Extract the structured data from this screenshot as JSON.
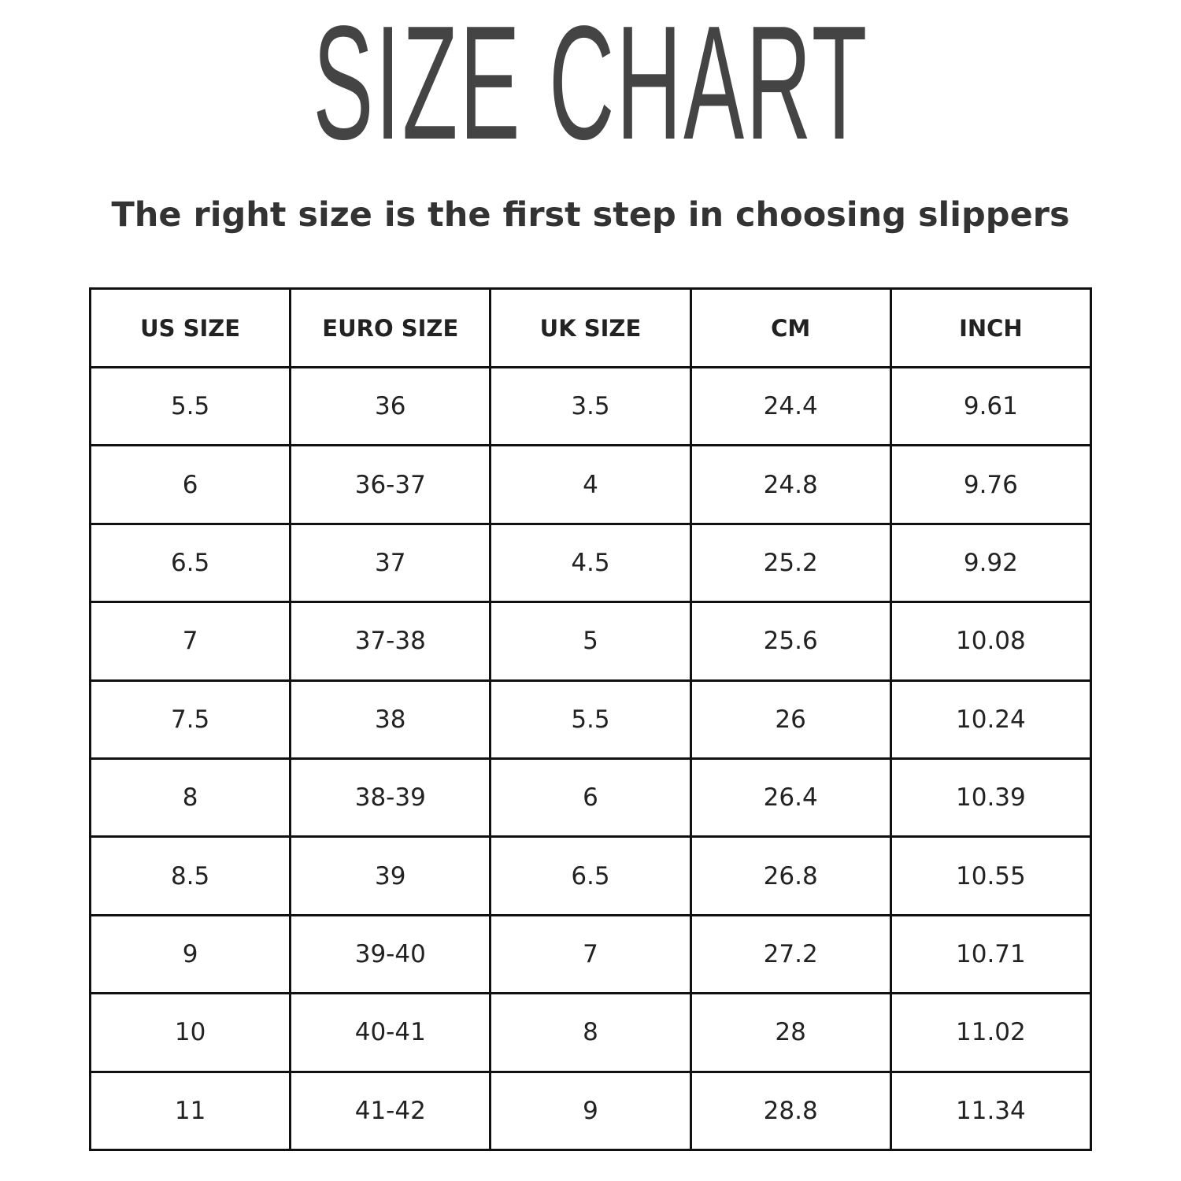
{
  "title": "SIZE CHART",
  "subtitle": "The right size is the first step in choosing slippers",
  "table": {
    "headers": [
      "US SIZE",
      "EURO SIZE",
      "UK SIZE",
      "CM",
      "INCH"
    ],
    "rows": [
      [
        "5.5",
        "36",
        "3.5",
        "24.4",
        "9.61"
      ],
      [
        "6",
        "36-37",
        "4",
        "24.8",
        "9.76"
      ],
      [
        "6.5",
        "37",
        "4.5",
        "25.2",
        "9.92"
      ],
      [
        "7",
        "37-38",
        "5",
        "25.6",
        "10.08"
      ],
      [
        "7.5",
        "38",
        "5.5",
        "26",
        "10.24"
      ],
      [
        "8",
        "38-39",
        "6",
        "26.4",
        "10.39"
      ],
      [
        "8.5",
        "39",
        "6.5",
        "26.8",
        "10.55"
      ],
      [
        "9",
        "39-40",
        "7",
        "27.2",
        "10.71"
      ],
      [
        "10",
        "40-41",
        "8",
        "28",
        "11.02"
      ],
      [
        "11",
        "41-42",
        "9",
        "28.8",
        "11.34"
      ]
    ]
  }
}
